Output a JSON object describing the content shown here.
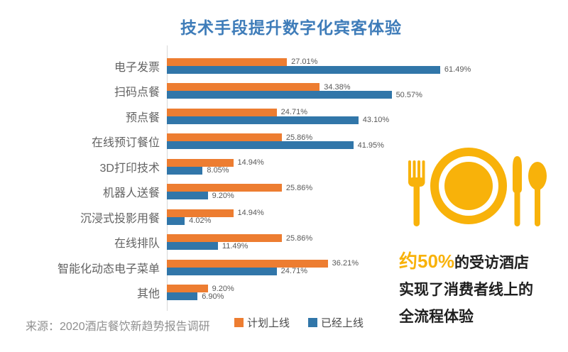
{
  "title": "技术手段提升数字化宾客体验",
  "source": "来源：2020酒店餐饮新趋势报告调研",
  "chart_data": {
    "type": "bar",
    "orientation": "horizontal",
    "title": "技术手段提升数字化宾客体验",
    "categories": [
      "电子发票",
      "扫码点餐",
      "预点餐",
      "在线预订餐位",
      "3D打印技术",
      "机器人送餐",
      "沉浸式投影用餐",
      "在线排队",
      "智能化动态电子菜单",
      "其他"
    ],
    "series": [
      {
        "name": "计划上线",
        "color": "#ED7D31",
        "values": [
          27.01,
          34.38,
          24.71,
          25.86,
          14.94,
          25.86,
          14.94,
          25.86,
          36.21,
          9.2
        ]
      },
      {
        "name": "已经上线",
        "color": "#3176A9",
        "values": [
          61.49,
          50.57,
          43.1,
          41.95,
          8.05,
          9.2,
          4.02,
          11.49,
          24.71,
          6.9
        ]
      }
    ],
    "value_suffix": "%",
    "value_labels": true,
    "xlim": [
      0,
      67
    ],
    "grid": false,
    "legend_position": "bottom"
  },
  "callout": {
    "highlight": "约50%",
    "line1_rest": "的受访酒店",
    "line2": "实现了消费者线上的",
    "line3": "全流程体验",
    "icon": "place-setting-icon",
    "accent_color": "#F8B20A",
    "text_color": "#1F1F1F"
  },
  "colors": {
    "title": "#3E7CB9",
    "axis_line": "#D8D8D8",
    "category_label": "#636363",
    "value_label": "#595959",
    "legend_label": "#4A4A4A",
    "source": "#8F8F8F"
  }
}
